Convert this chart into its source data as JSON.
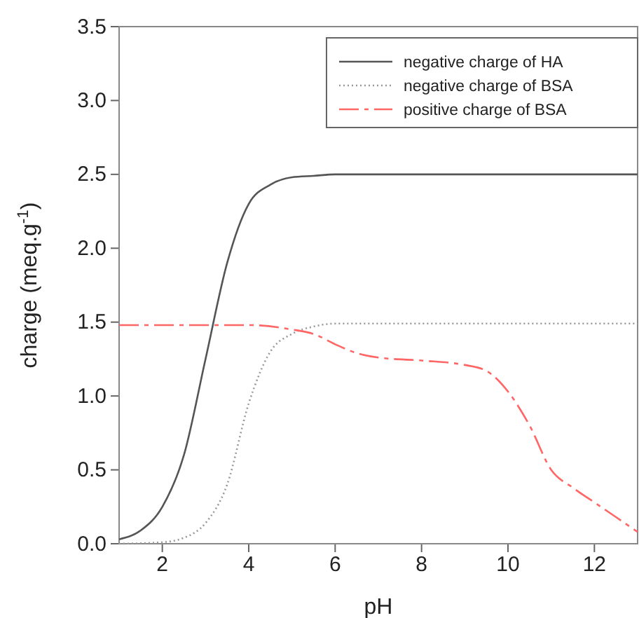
{
  "chart_data": {
    "type": "line",
    "xlabel": "pH",
    "ylabel": "charge (meq.g$^{-1}$)",
    "xlim": [
      1,
      13
    ],
    "xticks": [
      2,
      4,
      6,
      8,
      10,
      12
    ],
    "ylim": [
      0,
      3.5
    ],
    "yticks": [
      {
        "value": 0,
        "label": "0.0"
      },
      {
        "value": 0.5,
        "label": "0.5"
      },
      {
        "value": 1,
        "label": "1.0"
      },
      {
        "value": 1.5,
        "label": "1.5"
      },
      {
        "value": 2,
        "label": "2.0"
      },
      {
        "value": 2.5,
        "label": "2.5"
      },
      {
        "value": 3,
        "label": "3.0"
      },
      {
        "value": 3.5,
        "label": "3.5"
      }
    ],
    "legend": "top right",
    "grid": false,
    "marker": "none",
    "series": [
      {
        "name": "negative charge of HA",
        "color": "#555555",
        "line_style": "solid",
        "x": [
          1,
          1.5,
          2,
          2.5,
          3,
          3.5,
          4,
          4.5,
          5,
          5.5,
          6,
          13
        ],
        "values": [
          0.03,
          0.09,
          0.25,
          0.6,
          1.25,
          1.9,
          2.3,
          2.43,
          2.48,
          2.49,
          2.5,
          2.5
        ]
      },
      {
        "name": "negative charge of BSA",
        "color": "#999999",
        "line_style": "dotted",
        "x": [
          1,
          2,
          2.5,
          3,
          3.5,
          4,
          4.5,
          5,
          5.5,
          6,
          13
        ],
        "values": [
          0,
          0.01,
          0.04,
          0.14,
          0.4,
          0.95,
          1.3,
          1.42,
          1.47,
          1.49,
          1.49
        ]
      },
      {
        "name": "positive charge of BSA",
        "color": "#ff6666",
        "line_style": "dashed",
        "x": [
          1,
          4,
          5,
          5.5,
          6,
          6.5,
          7,
          8,
          9,
          9.5,
          10,
          10.5,
          11,
          11.5,
          12,
          12.5,
          13
        ],
        "values": [
          1.48,
          1.48,
          1.45,
          1.42,
          1.35,
          1.29,
          1.26,
          1.24,
          1.21,
          1.17,
          1.03,
          0.8,
          0.5,
          0.38,
          0.28,
          0.18,
          0.08
        ]
      }
    ]
  }
}
